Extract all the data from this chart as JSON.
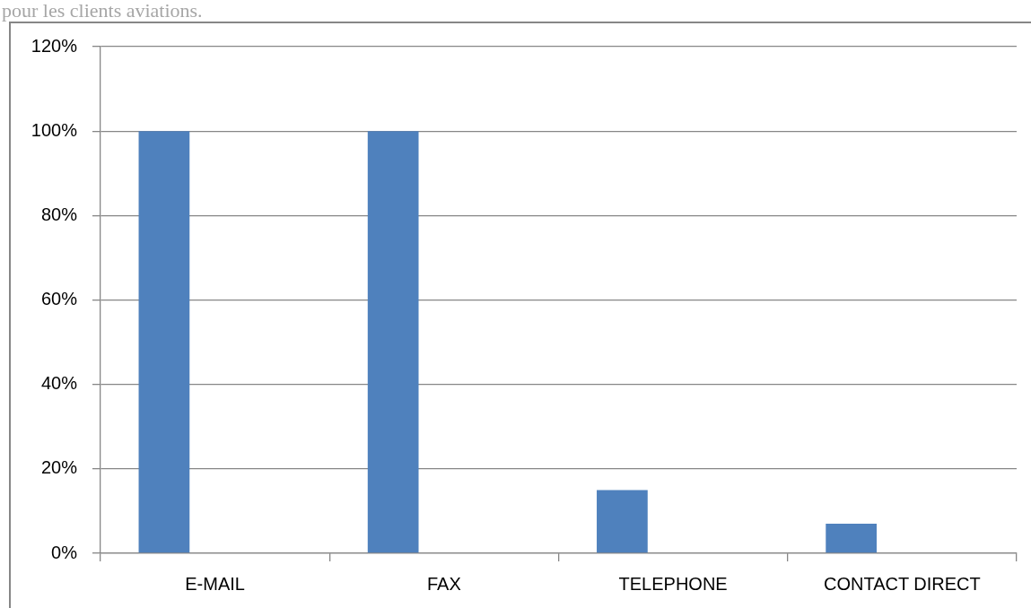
{
  "chart_data": {
    "type": "bar",
    "categories": [
      "E-MAIL",
      "FAX",
      "TELEPHONE",
      "CONTACT DIRECT"
    ],
    "values": [
      100,
      100,
      15,
      7
    ],
    "color": "#4f81bd",
    "ylim": [
      0,
      120
    ],
    "yticks": [
      {
        "value": 0,
        "label": "0%"
      },
      {
        "value": 20,
        "label": "20%"
      },
      {
        "value": 40,
        "label": "40%"
      },
      {
        "value": 60,
        "label": "60%"
      },
      {
        "value": 80,
        "label": "80%"
      },
      {
        "value": 100,
        "label": "100%"
      },
      {
        "value": 120,
        "label": "120%"
      }
    ],
    "grid": "y",
    "annotations": [
      "pour les clients aviations."
    ]
  }
}
